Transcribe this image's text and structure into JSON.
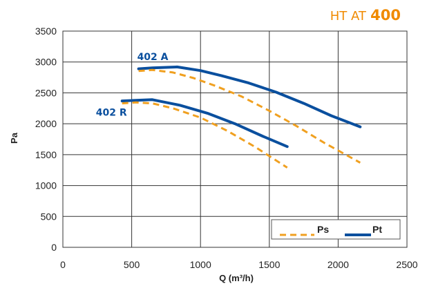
{
  "brand": {
    "prefix": "HT AT",
    "number": "400",
    "color": "#f08a00"
  },
  "chart_data": {
    "type": "line",
    "xlabel": "Q (m³/h)",
    "ylabel": "Pa",
    "xlim": [
      0,
      2500
    ],
    "ylim": [
      0,
      3500
    ],
    "xticks": [
      0,
      500,
      1000,
      1500,
      2000,
      2500
    ],
    "yticks": [
      0,
      500,
      1000,
      1500,
      2000,
      2500,
      3000,
      3500
    ],
    "grid": true,
    "legend_position": "bottom-right",
    "colors": {
      "Pt": "#0a4f9e",
      "Ps": "#f0a020"
    },
    "curves": [
      {
        "label": "402 A",
        "type": "Pt",
        "x": [
          550,
          650,
          830,
          1000,
          1150,
          1350,
          1550,
          1750,
          1950,
          2160
        ],
        "y": [
          2890,
          2905,
          2920,
          2860,
          2780,
          2660,
          2510,
          2330,
          2130,
          1950
        ]
      },
      {
        "label": "402 A",
        "type": "Ps",
        "x": [
          550,
          650,
          800,
          950,
          1100,
          1300,
          1500,
          1700,
          1900,
          2160
        ],
        "y": [
          2855,
          2870,
          2830,
          2740,
          2620,
          2440,
          2210,
          1960,
          1690,
          1370
        ]
      },
      {
        "label": "402 R",
        "type": "Pt",
        "x": [
          430,
          530,
          650,
          850,
          1050,
          1250,
          1450,
          1630
        ],
        "y": [
          2370,
          2380,
          2390,
          2300,
          2170,
          2000,
          1800,
          1630
        ]
      },
      {
        "label": "402 R",
        "type": "Ps",
        "x": [
          430,
          530,
          650,
          800,
          1000,
          1200,
          1400,
          1630
        ],
        "y": [
          2330,
          2345,
          2330,
          2250,
          2100,
          1880,
          1620,
          1290
        ]
      }
    ],
    "series_labels": [
      {
        "text": "402 A",
        "x": 540,
        "y": 3030
      },
      {
        "text": "402 R",
        "x": 240,
        "y": 2130
      }
    ],
    "legend": [
      {
        "name": "Ps",
        "style": "dashed"
      },
      {
        "name": "Pt",
        "style": "solid"
      }
    ]
  }
}
